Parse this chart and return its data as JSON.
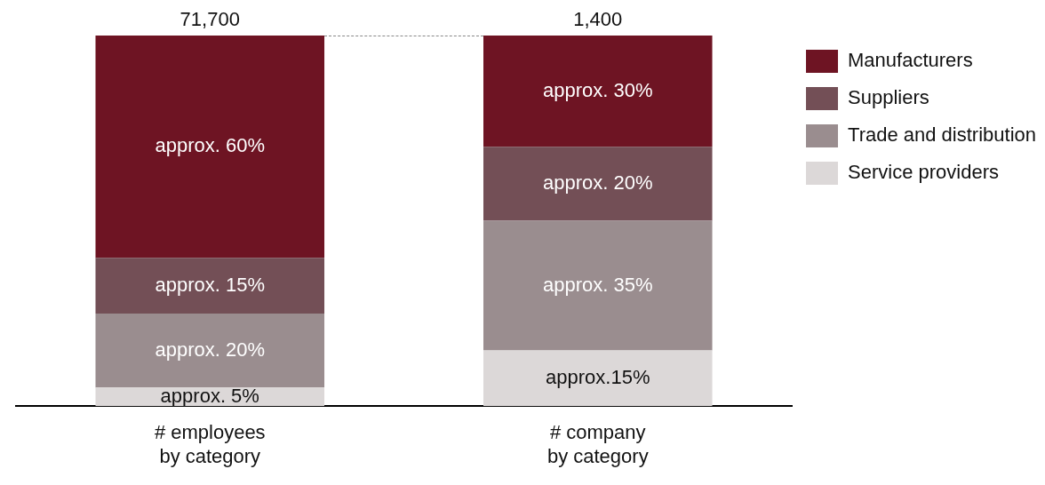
{
  "chart_data": {
    "type": "bar",
    "stacked": true,
    "categories": [
      "# employees\nby category",
      "# company\nby category"
    ],
    "ylim": [
      0,
      100
    ],
    "tick_labels": "x",
    "grid": false,
    "legend": "right",
    "series": [
      {
        "name": "Service providers",
        "color": "#dcd8d8",
        "values": [
          5,
          15
        ],
        "value_labels": [
          "approx. 5%",
          "approx.15%"
        ]
      },
      {
        "name": "Trade and distribution",
        "color": "#9a8d8f",
        "values": [
          20,
          35
        ],
        "value_labels": [
          "approx. 20%",
          "approx. 35%"
        ]
      },
      {
        "name": "Suppliers",
        "color": "#734f56",
        "values": [
          15,
          20
        ],
        "value_labels": [
          "approx. 15%",
          "approx. 20%"
        ]
      },
      {
        "name": "Manufacturers",
        "color": "#6e1423",
        "values": [
          60,
          30
        ],
        "value_labels": [
          "approx. 60%",
          "approx. 30%"
        ]
      }
    ],
    "annotations": [
      {
        "text": "71,700",
        "x": "# employees\nby category",
        "y": 100
      },
      {
        "text": "1,400",
        "x": "# company\nby category",
        "y": 100
      }
    ]
  }
}
